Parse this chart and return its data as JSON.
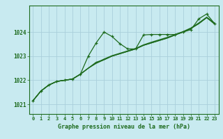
{
  "title": "Graphe pression niveau de la mer (hPa)",
  "xlim": [
    -0.5,
    23.5
  ],
  "ylim": [
    1020.6,
    1025.1
  ],
  "yticks": [
    1021,
    1022,
    1023,
    1024
  ],
  "xticks": [
    0,
    1,
    2,
    3,
    4,
    5,
    6,
    7,
    8,
    9,
    10,
    11,
    12,
    13,
    14,
    15,
    16,
    17,
    18,
    19,
    20,
    21,
    22,
    23
  ],
  "bg_color": "#c8eaf0",
  "grid_color": "#aacfdb",
  "line_color": "#1e6b1e",
  "title_color": "#1e6b1e",
  "line1": [
    1021.15,
    1021.55,
    1021.8,
    1021.95,
    1022.0,
    1022.05,
    1022.25,
    1023.0,
    1023.55,
    1024.0,
    1023.82,
    1023.52,
    1023.3,
    1023.3,
    1023.88,
    1023.9,
    1023.9,
    1023.9,
    1023.9,
    1024.0,
    1024.1,
    1024.55,
    1024.75,
    1024.35
  ],
  "line2": [
    1021.15,
    1021.55,
    1021.8,
    1021.95,
    1022.0,
    1022.05,
    1022.25,
    1022.5,
    1022.75,
    1022.85,
    1023.0,
    1023.1,
    1023.2,
    1023.3,
    1023.45,
    1023.55,
    1023.65,
    1023.75,
    1023.88,
    1024.0,
    1024.15,
    1024.35,
    1024.6,
    1024.35
  ],
  "line3": [
    1021.15,
    1021.55,
    1021.8,
    1021.95,
    1022.0,
    1022.05,
    1022.25,
    1022.5,
    1022.72,
    1022.88,
    1023.02,
    1023.12,
    1023.22,
    1023.32,
    1023.47,
    1023.58,
    1023.68,
    1023.78,
    1023.9,
    1024.02,
    1024.17,
    1024.38,
    1024.62,
    1024.37
  ],
  "line4": [
    1021.15,
    1021.55,
    1021.8,
    1021.95,
    1022.0,
    1022.05,
    1022.25,
    1022.5,
    1022.7,
    1022.85,
    1023.0,
    1023.1,
    1023.2,
    1023.3,
    1023.45,
    1023.55,
    1023.65,
    1023.75,
    1023.88,
    1024.0,
    1024.15,
    1024.35,
    1024.6,
    1024.33
  ]
}
